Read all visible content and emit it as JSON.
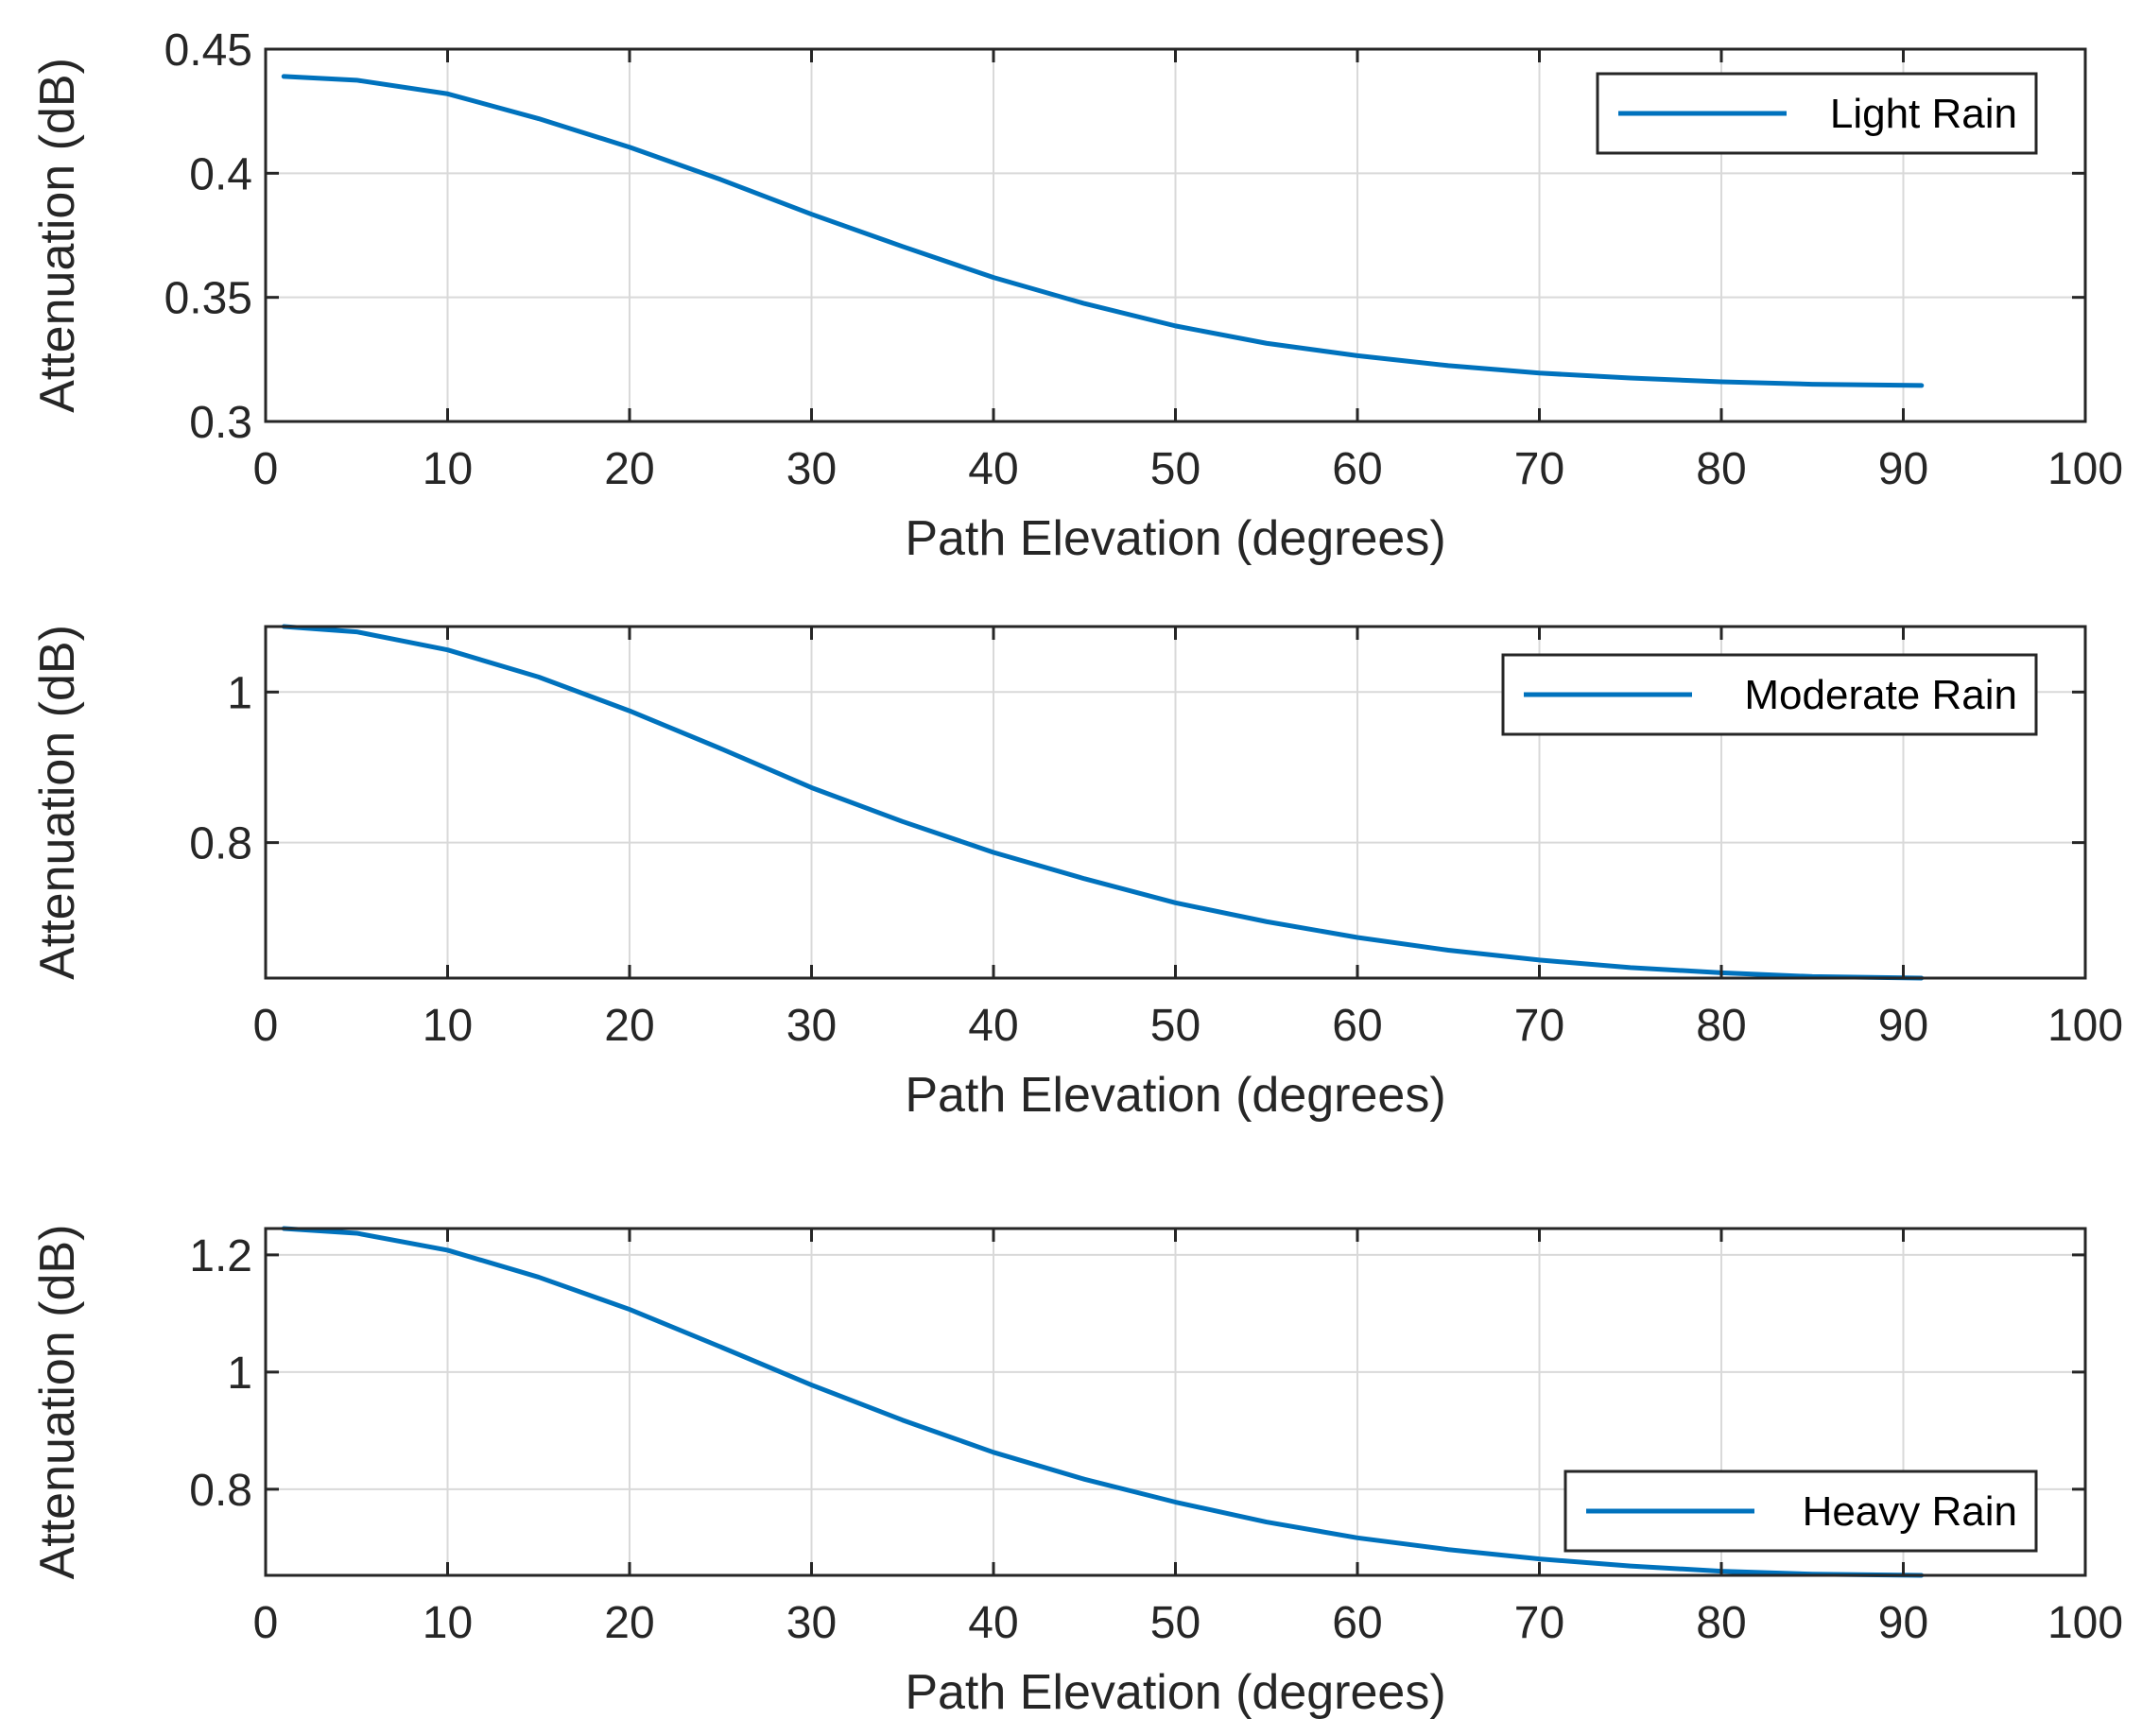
{
  "chart_data": [
    {
      "type": "line",
      "title": "",
      "xlabel": "Path Elevation (degrees)",
      "ylabel": "Attenuation (dB)",
      "xlim": [
        0,
        100
      ],
      "ylim": [
        0.3,
        0.45
      ],
      "xticks": [
        0,
        10,
        20,
        30,
        40,
        50,
        60,
        70,
        80,
        90,
        100
      ],
      "xtick_labels": [
        "0",
        "10",
        "20",
        "30",
        "40",
        "50",
        "60",
        "70",
        "80",
        "90",
        "100"
      ],
      "yticks": [
        0.3,
        0.35,
        0.4,
        0.45
      ],
      "ytick_labels": [
        "0.3",
        "0.35",
        "0.4",
        "0.45"
      ],
      "grid": true,
      "legend_position": "top-right",
      "series": [
        {
          "name": "Light Rain",
          "color": "#0072BD",
          "x": [
            1,
            5,
            10,
            15,
            20,
            25,
            30,
            35,
            40,
            45,
            50,
            55,
            60,
            65,
            70,
            75,
            80,
            85,
            91
          ],
          "y": [
            0.439,
            0.4375,
            0.432,
            0.422,
            0.4105,
            0.3975,
            0.3835,
            0.3705,
            0.358,
            0.3475,
            0.3385,
            0.3315,
            0.3265,
            0.3225,
            0.3195,
            0.3175,
            0.316,
            0.315,
            0.3145
          ]
        }
      ]
    },
    {
      "type": "line",
      "title": "",
      "xlabel": "Path Elevation (degrees)",
      "ylabel": "Attenuation (dB)",
      "xlim": [
        0,
        100
      ],
      "ylim": [
        0.62,
        1.087
      ],
      "xticks": [
        0,
        10,
        20,
        30,
        40,
        50,
        60,
        70,
        80,
        90,
        100
      ],
      "xtick_labels": [
        "0",
        "10",
        "20",
        "30",
        "40",
        "50",
        "60",
        "70",
        "80",
        "90",
        "100"
      ],
      "yticks": [
        0.8,
        1.0
      ],
      "ytick_labels": [
        "0.8",
        "1"
      ],
      "grid": true,
      "legend_position": "top-right",
      "series": [
        {
          "name": "Moderate Rain",
          "color": "#0072BD",
          "x": [
            1,
            5,
            10,
            15,
            20,
            25,
            30,
            35,
            40,
            45,
            50,
            55,
            60,
            65,
            70,
            75,
            80,
            85,
            91
          ],
          "y": [
            1.087,
            1.08,
            1.056,
            1.02,
            0.975,
            0.925,
            0.873,
            0.828,
            0.787,
            0.752,
            0.72,
            0.695,
            0.674,
            0.657,
            0.644,
            0.634,
            0.627,
            0.622,
            0.62
          ]
        }
      ]
    },
    {
      "type": "line",
      "title": "",
      "xlabel": "Path Elevation (degrees)",
      "ylabel": "Attenuation (dB)",
      "xlim": [
        0,
        100
      ],
      "ylim": [
        0.653,
        1.245
      ],
      "xticks": [
        0,
        10,
        20,
        30,
        40,
        50,
        60,
        70,
        80,
        90,
        100
      ],
      "xtick_labels": [
        "0",
        "10",
        "20",
        "30",
        "40",
        "50",
        "60",
        "70",
        "80",
        "90",
        "100"
      ],
      "yticks": [
        0.8,
        1.0,
        1.2
      ],
      "ytick_labels": [
        "0.8",
        "1",
        "1.2"
      ],
      "grid": true,
      "legend_position": "bottom-right",
      "series": [
        {
          "name": "Heavy Rain",
          "color": "#0072BD",
          "x": [
            1,
            5,
            10,
            15,
            20,
            25,
            30,
            35,
            40,
            45,
            50,
            55,
            60,
            65,
            70,
            75,
            80,
            85,
            91
          ],
          "y": [
            1.245,
            1.237,
            1.208,
            1.162,
            1.107,
            1.043,
            0.978,
            0.918,
            0.863,
            0.817,
            0.778,
            0.744,
            0.717,
            0.697,
            0.681,
            0.669,
            0.66,
            0.655,
            0.653
          ]
        }
      ]
    }
  ]
}
